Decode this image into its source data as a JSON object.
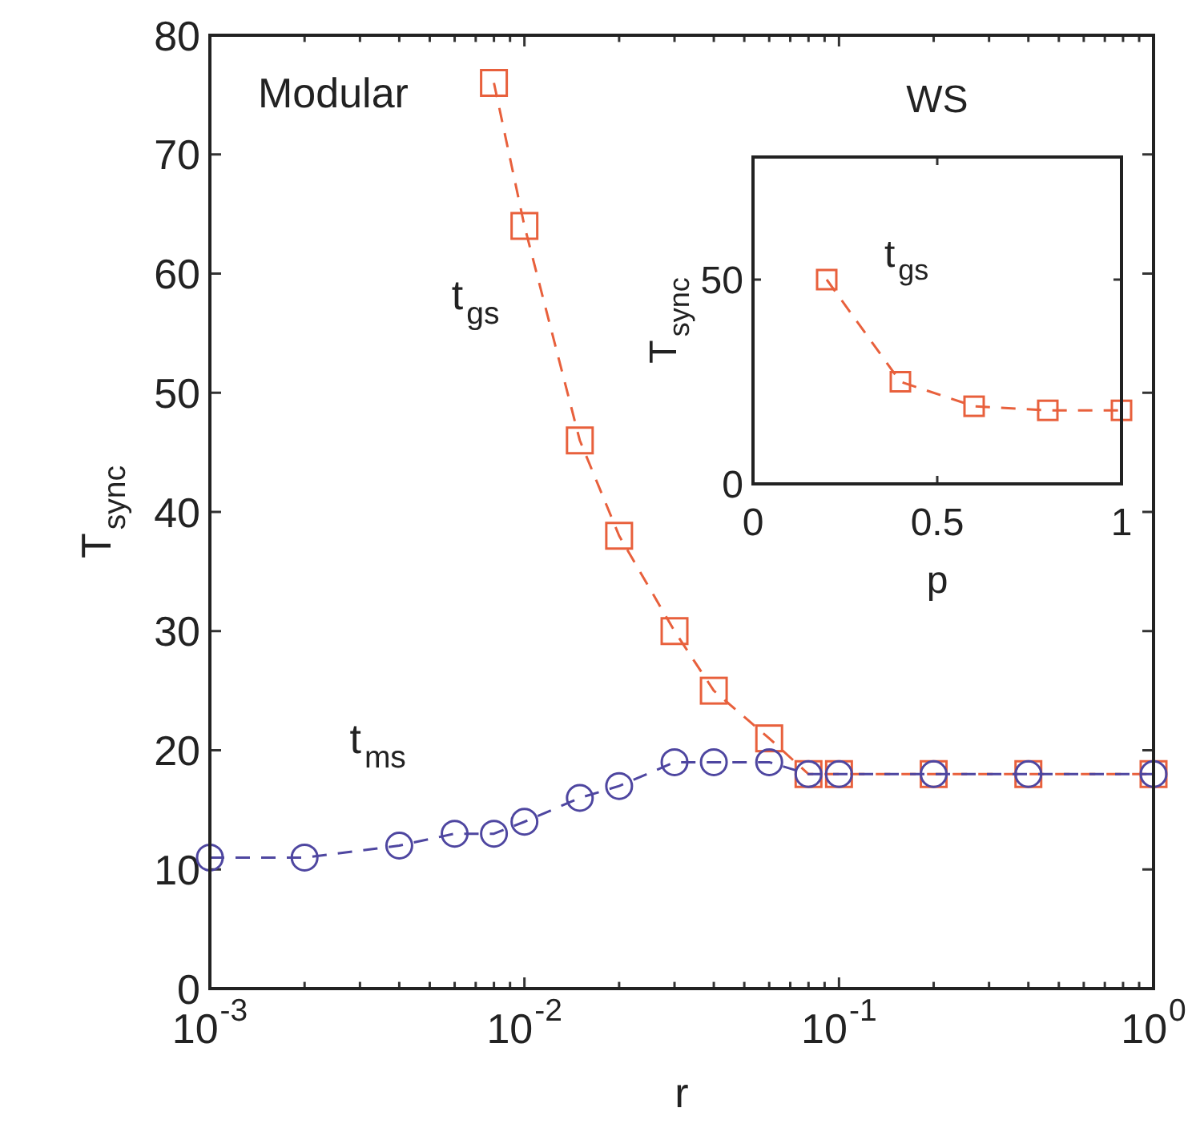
{
  "chart_data": [
    {
      "type": "line",
      "title": "Modular",
      "xlabel": "r",
      "ylabel": "T$_{sync}$",
      "log": "x",
      "line_style": "dashed",
      "grid": false,
      "xlim": [
        0.001,
        1
      ],
      "ylim": [
        0,
        80
      ],
      "xticks": [
        {
          "value": 0.001,
          "label": "10$^{-3}$"
        },
        {
          "value": 0.002,
          "label": null
        },
        {
          "value": 0.003,
          "label": null
        },
        {
          "value": 0.004,
          "label": null
        },
        {
          "value": 0.005,
          "label": null
        },
        {
          "value": 0.006,
          "label": null
        },
        {
          "value": 0.007,
          "label": null
        },
        {
          "value": 0.008,
          "label": null
        },
        {
          "value": 0.009,
          "label": null
        },
        {
          "value": 0.01,
          "label": "10$^{-2}$"
        },
        {
          "value": 0.02,
          "label": null
        },
        {
          "value": 0.03,
          "label": null
        },
        {
          "value": 0.04,
          "label": null
        },
        {
          "value": 0.05,
          "label": null
        },
        {
          "value": 0.06,
          "label": null
        },
        {
          "value": 0.07,
          "label": null
        },
        {
          "value": 0.08,
          "label": null
        },
        {
          "value": 0.09,
          "label": null
        },
        {
          "value": 0.1,
          "label": "10$^{-1}$"
        },
        {
          "value": 0.2,
          "label": null
        },
        {
          "value": 0.3,
          "label": null
        },
        {
          "value": 0.4,
          "label": null
        },
        {
          "value": 0.5,
          "label": null
        },
        {
          "value": 0.6,
          "label": null
        },
        {
          "value": 0.7,
          "label": null
        },
        {
          "value": 0.8,
          "label": null
        },
        {
          "value": 0.9,
          "label": null
        },
        {
          "value": 1,
          "label": "10$^{0}$"
        }
      ],
      "yticks": [
        0,
        10,
        20,
        30,
        40,
        50,
        60,
        70,
        80
      ],
      "series": [
        {
          "name": "t$_{gs}$",
          "color": "#e8603c",
          "marker": "square",
          "x": [
            0.008,
            0.01,
            0.015,
            0.02,
            0.03,
            0.04,
            0.06,
            0.08,
            0.1,
            0.2,
            0.4,
            1
          ],
          "values": [
            76,
            64,
            46,
            38,
            30,
            25,
            21,
            18,
            18,
            18,
            18,
            18
          ]
        },
        {
          "name": "t$_{ms}$",
          "color": "#4e46a0",
          "marker": "circle",
          "x": [
            0.001,
            0.002,
            0.004,
            0.006,
            0.008,
            0.01,
            0.015,
            0.02,
            0.03,
            0.04,
            0.06,
            0.08,
            0.1,
            0.2,
            0.4,
            1
          ],
          "values": [
            11,
            11,
            12,
            13,
            13,
            14,
            16,
            17,
            19,
            19,
            19,
            18,
            18,
            18,
            18,
            18
          ]
        }
      ]
    },
    {
      "type": "line",
      "title": "WS",
      "xlabel": "p",
      "ylabel": "T$_{sync}$",
      "line_style": "dashed",
      "grid": false,
      "xlim": [
        0,
        1
      ],
      "ylim": [
        0,
        80
      ],
      "xticks": [
        0,
        0.5,
        1
      ],
      "yticks": [
        0,
        50
      ],
      "series": [
        {
          "name": "t$_{gs}$",
          "color": "#e8603c",
          "marker": "square",
          "x": [
            0.2,
            0.4,
            0.6,
            0.8,
            1
          ],
          "values": [
            50,
            25,
            19,
            18,
            18
          ]
        }
      ]
    }
  ]
}
